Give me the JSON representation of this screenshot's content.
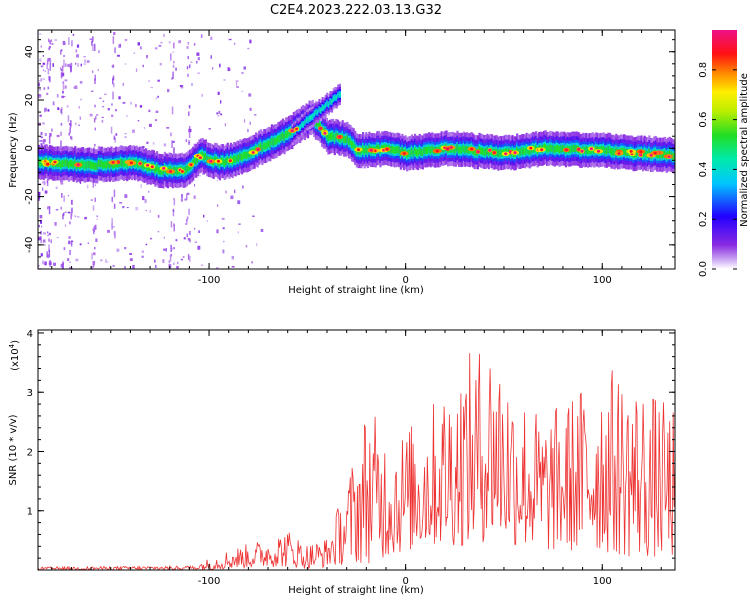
{
  "figure": {
    "title": "C2E4.2023.222.03.13.G32"
  },
  "chart_data": [
    {
      "type": "heatmap",
      "title": "C2E4.2023.222.03.13.G32",
      "xlabel": "Height of straight line (km)",
      "ylabel": "Frequency (Hz)",
      "xlim": [
        -187,
        137
      ],
      "ylim": [
        -50,
        49
      ],
      "x_ticks": [
        -100,
        0,
        100
      ],
      "y_ticks": [
        40,
        20,
        0,
        -20,
        -40
      ],
      "grid": false,
      "colorbar": {
        "label": "Normalized spectral amplitude",
        "range": [
          0,
          0.96
        ],
        "ticks": [
          0.0,
          0.2,
          0.4,
          0.6,
          0.8
        ],
        "colormap": "rainbow (purple-blue-cyan-green-yellow-orange-red-magenta)"
      },
      "ridge": [
        {
          "x": -183,
          "y": -6
        },
        {
          "x": -160,
          "y": -7
        },
        {
          "x": -140,
          "y": -6
        },
        {
          "x": -125,
          "y": -9
        },
        {
          "x": -112,
          "y": -9
        },
        {
          "x": -105,
          "y": -3
        },
        {
          "x": -95,
          "y": -6
        },
        {
          "x": -85,
          "y": -4
        },
        {
          "x": -70,
          "y": 2
        },
        {
          "x": -60,
          "y": 6
        },
        {
          "x": -48,
          "y": 13
        },
        {
          "x": -40,
          "y": 5
        },
        {
          "x": -30,
          "y": 4
        },
        {
          "x": -25,
          "y": -1
        },
        {
          "x": -10,
          "y": 0
        },
        {
          "x": 0,
          "y": -2
        },
        {
          "x": 20,
          "y": 0
        },
        {
          "x": 50,
          "y": -2
        },
        {
          "x": 70,
          "y": 0
        },
        {
          "x": 100,
          "y": -1
        },
        {
          "x": 137,
          "y": -3
        }
      ],
      "secondary_ridge": [
        {
          "x": -58,
          "y": 6
        },
        {
          "x": -50,
          "y": 12
        },
        {
          "x": -42,
          "y": 17
        },
        {
          "x": -34,
          "y": 22
        }
      ]
    },
    {
      "type": "line",
      "xlabel": "Height of straight line (km)",
      "ylabel": "SNR (10 * v/v)",
      "y_multiplier": "(x10",
      "y_multiplier_exp": "4",
      "y_multiplier_close": ")",
      "xlim": [
        -187,
        137
      ],
      "ylim": [
        0,
        4.05
      ],
      "x_ticks": [
        -100,
        0,
        100
      ],
      "y_ticks": [
        1,
        2,
        3,
        4
      ],
      "grid": false,
      "series": [
        {
          "color": "#ee3333",
          "envelope": [
            {
              "x": -187,
              "low": 0.0,
              "high": 0.05
            },
            {
              "x": -110,
              "low": 0.0,
              "high": 0.07
            },
            {
              "x": -100,
              "low": 0.0,
              "high": 0.2
            },
            {
              "x": -90,
              "low": 0.02,
              "high": 0.35
            },
            {
              "x": -75,
              "low": 0.05,
              "high": 0.5
            },
            {
              "x": -60,
              "low": 0.05,
              "high": 0.7
            },
            {
              "x": -50,
              "low": 0.02,
              "high": 0.45
            },
            {
              "x": -40,
              "low": 0.05,
              "high": 0.55
            },
            {
              "x": -30,
              "low": 0.1,
              "high": 1.5
            },
            {
              "x": -20,
              "low": 0.1,
              "high": 2.8
            },
            {
              "x": -10,
              "low": 0.2,
              "high": 2.4
            },
            {
              "x": 0,
              "low": 0.3,
              "high": 2.4
            },
            {
              "x": 15,
              "low": 0.4,
              "high": 2.9
            },
            {
              "x": 30,
              "low": 0.4,
              "high": 3.6
            },
            {
              "x": 45,
              "low": 0.5,
              "high": 4.05
            },
            {
              "x": 55,
              "low": 0.4,
              "high": 3.2
            },
            {
              "x": 70,
              "low": 0.3,
              "high": 2.6
            },
            {
              "x": 85,
              "low": 0.3,
              "high": 3.0
            },
            {
              "x": 100,
              "low": 0.3,
              "high": 3.5
            },
            {
              "x": 115,
              "low": 0.2,
              "high": 3.3
            },
            {
              "x": 137,
              "low": 0.2,
              "high": 2.7
            }
          ]
        }
      ]
    }
  ]
}
